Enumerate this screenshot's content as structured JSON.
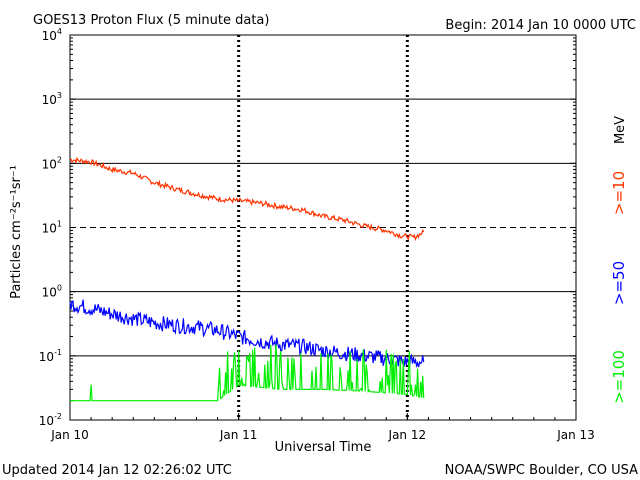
{
  "header": {
    "title": "GOES13 Proton Flux (5 minute data)",
    "begin": "Begin: 2014 Jan 10 0000 UTC"
  },
  "footer": {
    "updated": "Updated 2014 Jan 12 02:26:02 UTC",
    "credit": "NOAA/SWPC Boulder, CO USA"
  },
  "colors": {
    "ge10": "#ff3300",
    "ge50": "#0000ff",
    "ge100": "#00ee00",
    "axis": "#000000",
    "background": "#ffffff"
  },
  "chart_data": {
    "type": "line",
    "title": "GOES13 Proton Flux (5 minute data)",
    "xlabel": "Universal Time",
    "ylabel": "Particles cm⁻²s⁻¹sr⁻¹",
    "y_scale": "log",
    "ylim": [
      0.01,
      10000
    ],
    "xlim": [
      "2014-01-10 00:00",
      "2014-01-13 00:00"
    ],
    "x_tick_labels": [
      "Jan 10",
      "Jan 11",
      "Jan 12",
      "Jan 13"
    ],
    "y_tick_labels": [
      {
        "base": "10",
        "exp": "4"
      },
      {
        "base": "10",
        "exp": "3"
      },
      {
        "base": "10",
        "exp": "2"
      },
      {
        "base": "10",
        "exp": "1"
      },
      {
        "base": "10",
        "exp": "0"
      },
      {
        "base": "10",
        "exp": "-1"
      },
      {
        "base": "10",
        "exp": "-2"
      }
    ],
    "grid": "horizontal at decades; dashed at 10^1",
    "legend_placement": "right (vertical labels)",
    "units_label": "MeV",
    "series": [
      {
        "name": ">=10",
        "color": "#ff3300",
        "points": [
          [
            "2014-01-10 00:00",
            115
          ],
          [
            "2014-01-10 03:00",
            105
          ],
          [
            "2014-01-10 06:00",
            80
          ],
          [
            "2014-01-10 09:00",
            70
          ],
          [
            "2014-01-10 12:00",
            50
          ],
          [
            "2014-01-10 15:00",
            40
          ],
          [
            "2014-01-10 18:00",
            33
          ],
          [
            "2014-01-10 21:00",
            28
          ],
          [
            "2014-01-11 00:00",
            26
          ],
          [
            "2014-01-11 03:00",
            24
          ],
          [
            "2014-01-11 06:00",
            21
          ],
          [
            "2014-01-11 09:00",
            19
          ],
          [
            "2014-01-11 12:00",
            15
          ],
          [
            "2014-01-11 15:00",
            13
          ],
          [
            "2014-01-11 18:00",
            10.5
          ],
          [
            "2014-01-11 21:00",
            9
          ],
          [
            "2014-01-11 23:00",
            7.5
          ],
          [
            "2014-01-12 01:00",
            7
          ],
          [
            "2014-01-12 02:20",
            8.5
          ]
        ]
      },
      {
        "name": ">=50",
        "color": "#0000ff",
        "points": [
          [
            "2014-01-10 00:00",
            0.65
          ],
          [
            "2014-01-10 03:00",
            0.55
          ],
          [
            "2014-01-10 06:00",
            0.45
          ],
          [
            "2014-01-10 09:00",
            0.38
          ],
          [
            "2014-01-10 12:00",
            0.33
          ],
          [
            "2014-01-10 15:00",
            0.3
          ],
          [
            "2014-01-10 18:00",
            0.28
          ],
          [
            "2014-01-10 21:00",
            0.25
          ],
          [
            "2014-01-11 00:00",
            0.2
          ],
          [
            "2014-01-11 03:00",
            0.17
          ],
          [
            "2014-01-11 06:00",
            0.15
          ],
          [
            "2014-01-11 09:00",
            0.14
          ],
          [
            "2014-01-11 12:00",
            0.12
          ],
          [
            "2014-01-11 15:00",
            0.11
          ],
          [
            "2014-01-11 18:00",
            0.1
          ],
          [
            "2014-01-11 21:00",
            0.09
          ],
          [
            "2014-01-12 00:00",
            0.08
          ],
          [
            "2014-01-12 02:20",
            0.08
          ]
        ]
      },
      {
        "name": ">=100",
        "color": "#00ee00",
        "points": [
          [
            "2014-01-10 00:00",
            0.02
          ],
          [
            "2014-01-10 06:00",
            0.02
          ],
          [
            "2014-01-10 12:00",
            0.02
          ],
          [
            "2014-01-10 18:00",
            0.02
          ],
          [
            "2014-01-10 21:00",
            0.02
          ],
          [
            "2014-01-11 00:00",
            0.035
          ],
          [
            "2014-01-11 06:00",
            0.03
          ],
          [
            "2014-01-11 12:00",
            0.03
          ],
          [
            "2014-01-11 18:00",
            0.028
          ],
          [
            "2014-01-12 00:00",
            0.025
          ],
          [
            "2014-01-12 02:20",
            0.022
          ]
        ]
      }
    ]
  }
}
